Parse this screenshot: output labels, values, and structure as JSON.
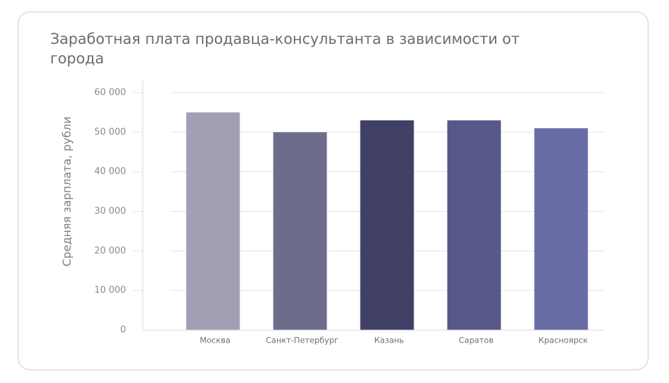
{
  "chart_data": {
    "type": "bar",
    "title": "Заработная плата продавца-консультанта в зависимости от города",
    "xlabel": "",
    "ylabel": "Средняя зарплата, рубли",
    "categories": [
      "Москва",
      "Санкт-Петербург",
      "Казань",
      "Саратов",
      "Красноярск"
    ],
    "values": [
      55000,
      50000,
      53000,
      53000,
      51000
    ],
    "colors": [
      "#a09fb3",
      "#6d6d8b",
      "#403f66",
      "#555889",
      "#686da8"
    ],
    "ylim": [
      0,
      60000
    ],
    "yticks": [
      0,
      10000,
      20000,
      30000,
      40000,
      50000,
      60000
    ],
    "ytick_labels": [
      "0",
      "10 000",
      "20 000",
      "30 000",
      "40 000",
      "50 000",
      "60 000"
    ],
    "grid": true,
    "legend": "none"
  }
}
